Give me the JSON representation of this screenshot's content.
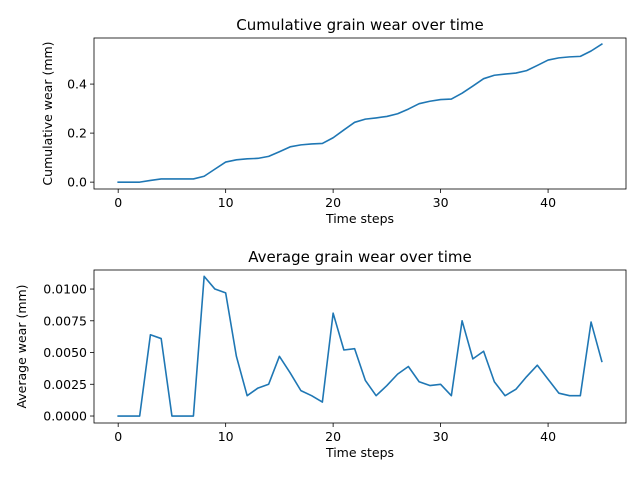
{
  "chart_data": [
    {
      "type": "line",
      "title": "Cumulative grain wear over time",
      "xlabel": "Time steps",
      "ylabel": "Cumulative wear (mm)",
      "xlim": [
        -2.25,
        47.25
      ],
      "ylim": [
        -0.028,
        0.588
      ],
      "xticks": [
        0,
        10,
        20,
        30,
        40
      ],
      "yticks": [
        0.0,
        0.2,
        0.4
      ],
      "ytick_labels": [
        "0.0",
        "0.2",
        "0.4"
      ],
      "color": "#1f77b4",
      "grid": false,
      "x": [
        0,
        1,
        2,
        3,
        4,
        5,
        6,
        7,
        8,
        9,
        10,
        11,
        12,
        13,
        14,
        15,
        16,
        17,
        18,
        19,
        20,
        21,
        22,
        23,
        24,
        25,
        26,
        27,
        28,
        29,
        30,
        31,
        32,
        33,
        34,
        35,
        36,
        37,
        38,
        39,
        40,
        41,
        42,
        43,
        44,
        45
      ],
      "values": [
        0,
        0,
        0,
        0.007,
        0.013,
        0.013,
        0.013,
        0.013,
        0.024,
        0.053,
        0.082,
        0.091,
        0.095,
        0.097,
        0.105,
        0.124,
        0.144,
        0.152,
        0.156,
        0.158,
        0.181,
        0.213,
        0.244,
        0.257,
        0.262,
        0.268,
        0.279,
        0.298,
        0.32,
        0.33,
        0.337,
        0.339,
        0.363,
        0.392,
        0.422,
        0.436,
        0.441,
        0.445,
        0.455,
        0.476,
        0.498,
        0.507,
        0.511,
        0.513,
        0.535,
        0.563
      ]
    },
    {
      "type": "line",
      "title": "Average grain wear over time",
      "xlabel": "Time steps",
      "ylabel": "Average wear (mm)",
      "xlim": [
        -2.25,
        47.25
      ],
      "ylim": [
        -0.00055,
        0.0115
      ],
      "xticks": [
        0,
        10,
        20,
        30,
        40
      ],
      "yticks": [
        0,
        0.0025,
        0.005,
        0.0075,
        0.01
      ],
      "ytick_labels": [
        "0.0000",
        "0.0025",
        "0.0050",
        "0.0075",
        "0.0100"
      ],
      "color": "#1f77b4",
      "grid": false,
      "x": [
        0,
        1,
        2,
        3,
        4,
        5,
        6,
        7,
        8,
        9,
        10,
        11,
        12,
        13,
        14,
        15,
        16,
        17,
        18,
        19,
        20,
        21,
        22,
        23,
        24,
        25,
        26,
        27,
        28,
        29,
        30,
        31,
        32,
        33,
        34,
        35,
        36,
        37,
        38,
        39,
        40,
        41,
        42,
        43,
        44,
        45
      ],
      "values": [
        0,
        0,
        0,
        0.0064,
        0.0061,
        0,
        0,
        0,
        0.011,
        0.01,
        0.0097,
        0.0047,
        0.0016,
        0.0022,
        0.0025,
        0.0047,
        0.0034,
        0.002,
        0.0016,
        0.0011,
        0.0081,
        0.0052,
        0.0053,
        0.0028,
        0.0016,
        0.0024,
        0.0033,
        0.0039,
        0.0027,
        0.0024,
        0.0025,
        0.0016,
        0.0075,
        0.0045,
        0.0051,
        0.0027,
        0.0016,
        0.0021,
        0.0031,
        0.004,
        0.0029,
        0.0018,
        0.0016,
        0.0016,
        0.0074,
        0.0043
      ]
    }
  ]
}
